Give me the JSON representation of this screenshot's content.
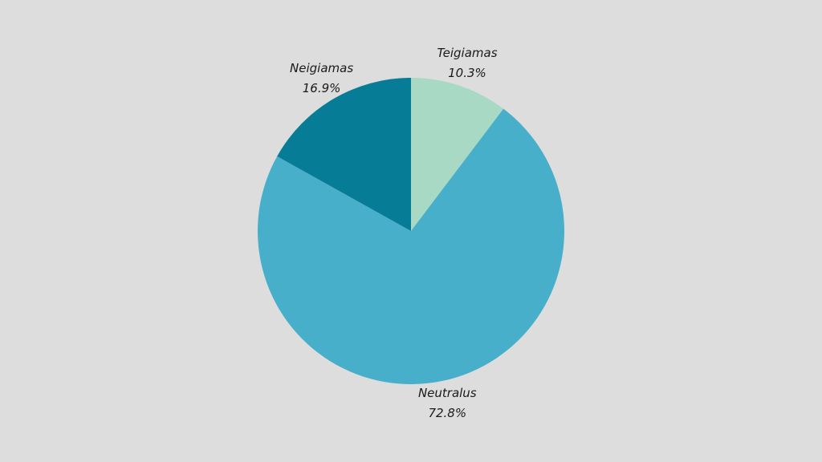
{
  "chart_data": {
    "type": "pie",
    "categories": [
      "Teigiamas",
      "Neutralus",
      "Neigiamas"
    ],
    "values": [
      10.3,
      72.8,
      16.9
    ],
    "value_labels": [
      "10.3%",
      "72.8%",
      "16.9%"
    ],
    "colors": [
      "#a8d9c5",
      "#47afc9",
      "#077c96"
    ]
  }
}
